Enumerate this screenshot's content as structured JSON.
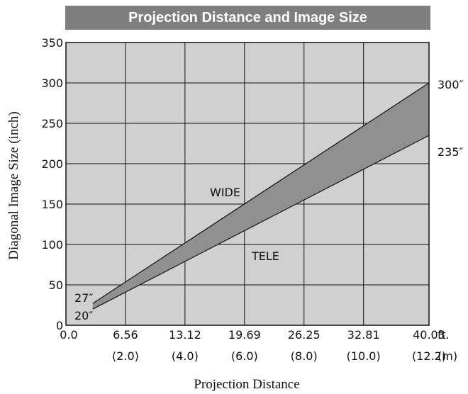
{
  "chart_data": {
    "type": "area",
    "title": "Projection Distance and Image Size",
    "xlabel": "Projection Distance",
    "ylabel": "Diagonal Image Size (inch)",
    "x_unit_ft": "ft.",
    "x_unit_m": "(m)",
    "x_ticks_ft": [
      "0.0",
      "6.56",
      "13.12",
      "19.69",
      "26.25",
      "32.81",
      "40.03"
    ],
    "x_ticks_m": [
      "",
      "(2.0)",
      "(4.0)",
      "(6.0)",
      "(8.0)",
      "(10.0)",
      "(12.2)"
    ],
    "x_tick_values_m": [
      0,
      2,
      4,
      6,
      8,
      10,
      12.2
    ],
    "y_ticks": [
      "0",
      "50",
      "100",
      "150",
      "200",
      "250",
      "300",
      "350"
    ],
    "xlim_m": [
      0,
      12.2
    ],
    "ylim": [
      0,
      350
    ],
    "grid": true,
    "series": [
      {
        "name": "WIDE",
        "x_m": [
          0.9,
          12.2
        ],
        "y": [
          27,
          300
        ],
        "end_label_start": "27″",
        "end_label_end": "300″"
      },
      {
        "name": "TELE",
        "x_m": [
          0.9,
          12.2
        ],
        "y": [
          20,
          235
        ],
        "end_label_start": "20″",
        "end_label_end": "235″"
      }
    ],
    "annotations": {
      "wide": "WIDE",
      "tele": "TELE"
    },
    "colors": {
      "plot_bg": "#d0d0d0",
      "band": "#909090",
      "title_bg": "#7f7f7f",
      "grid": "#111111"
    }
  }
}
